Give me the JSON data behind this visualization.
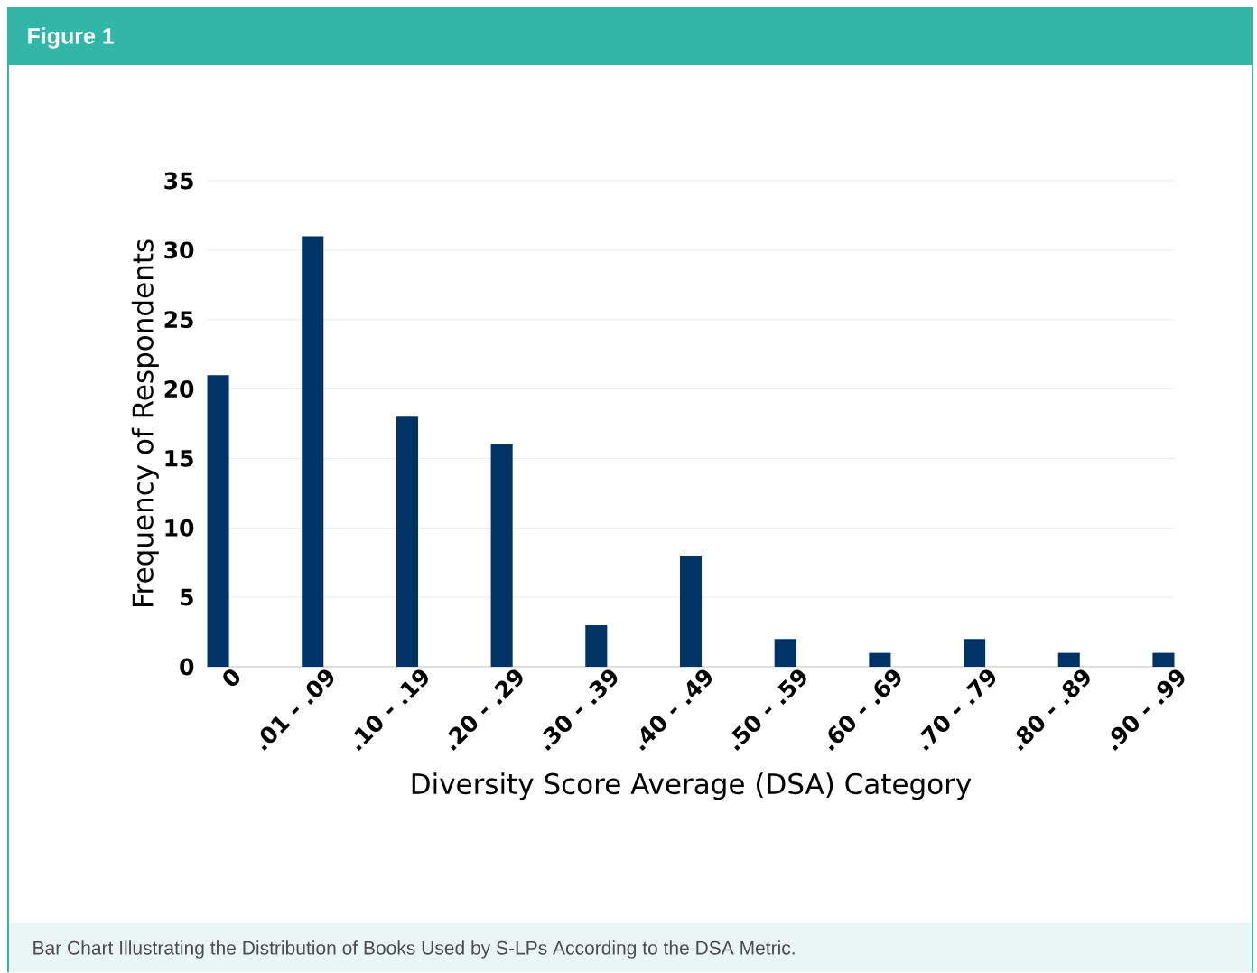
{
  "chart_data": {
    "type": "bar",
    "title": "Figure 1",
    "xlabel": "Diversity Score Average (DSA) Category",
    "ylabel": "Frequency of Respondents",
    "categories": [
      "0",
      ".01 - .09",
      ".10 - .19",
      ".20 - .29",
      ".30 - .39",
      ".40 - .49",
      ".50 - .59",
      ".60 - .69",
      ".70 - .79",
      ".80 - .89",
      ".90 - .99"
    ],
    "values": [
      21,
      31,
      18,
      16,
      3,
      8,
      2,
      1,
      2,
      1,
      1
    ],
    "color": "#003366",
    "ylim": [
      0,
      35
    ],
    "yticks": [
      0,
      5,
      10,
      15,
      20,
      25,
      30,
      35
    ],
    "grid": "y",
    "annotations": [
      "Bar Chart Illustrating the Distribution of Books Used by S-LPs According to the DSA Metric."
    ]
  }
}
